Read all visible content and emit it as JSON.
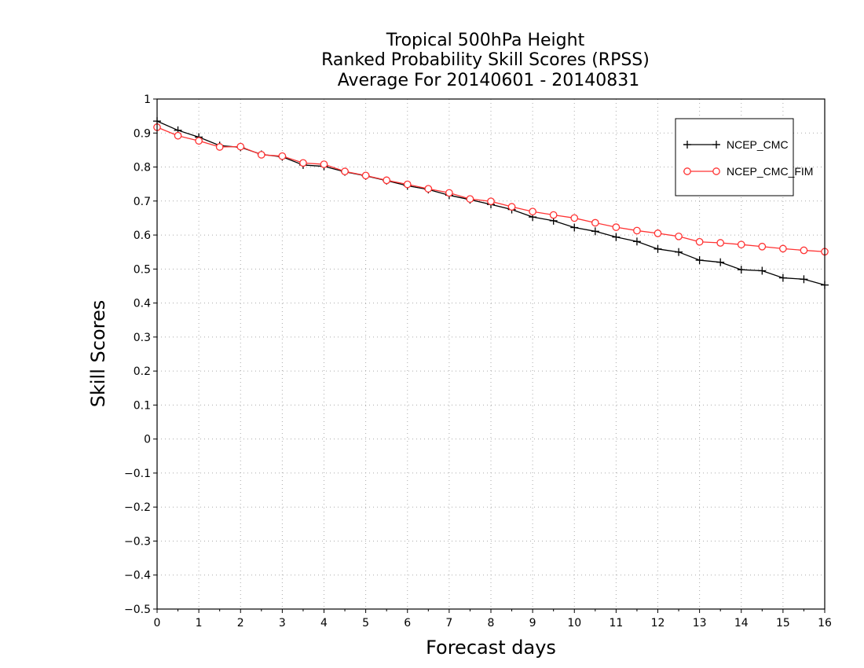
{
  "chart_data": {
    "type": "line",
    "title": [
      "Tropical 500hPa Height",
      "Ranked Probability Skill Scores (RPSS)",
      "Average For 20140601 - 20140831"
    ],
    "xlabel": "Forecast days",
    "ylabel": "Skill Scores",
    "xlim": [
      0,
      16
    ],
    "ylim": [
      -0.5,
      1
    ],
    "x_ticks": [
      0,
      1,
      2,
      3,
      4,
      5,
      6,
      7,
      8,
      9,
      10,
      11,
      12,
      13,
      14,
      15,
      16
    ],
    "y_ticks": [
      -0.5,
      -0.4,
      -0.3,
      -0.2,
      -0.1,
      0,
      0.1,
      0.2,
      0.3,
      0.4,
      0.5,
      0.6,
      0.7,
      0.8,
      0.9,
      1
    ],
    "y_tick_labels": [
      "−0.5",
      "−0.4",
      "−0.3",
      "−0.2",
      "−0.1",
      "0",
      "0.1",
      "0.2",
      "0.3",
      "0.4",
      "0.5",
      "0.6",
      "0.7",
      "0.8",
      "0.9",
      "1"
    ],
    "grid": true,
    "legend_position": "top-right",
    "x": [
      0,
      0.5,
      1,
      1.5,
      2,
      2.5,
      3,
      3.5,
      4,
      4.5,
      5,
      5.5,
      6,
      6.5,
      7,
      7.5,
      8,
      8.5,
      9,
      9.5,
      10,
      10.5,
      11,
      11.5,
      12,
      12.5,
      13,
      13.5,
      14,
      14.5,
      15,
      15.5,
      16
    ],
    "series": [
      {
        "name": "NCEP_CMC",
        "color": "#000000",
        "marker": "plus",
        "values": [
          0.935,
          0.908,
          0.888,
          0.863,
          0.858,
          0.837,
          0.83,
          0.806,
          0.802,
          0.786,
          0.774,
          0.76,
          0.745,
          0.734,
          0.717,
          0.704,
          0.69,
          0.675,
          0.653,
          0.642,
          0.622,
          0.611,
          0.594,
          0.581,
          0.559,
          0.55,
          0.526,
          0.52,
          0.498,
          0.495,
          0.474,
          0.47,
          0.453
        ]
      },
      {
        "name": "NCEP_CMC_FIM",
        "color": "#ff3333",
        "marker": "circle",
        "values": [
          0.917,
          0.892,
          0.877,
          0.859,
          0.86,
          0.836,
          0.832,
          0.812,
          0.808,
          0.787,
          0.775,
          0.761,
          0.749,
          0.736,
          0.724,
          0.706,
          0.699,
          0.683,
          0.669,
          0.659,
          0.65,
          0.636,
          0.623,
          0.613,
          0.605,
          0.596,
          0.58,
          0.577,
          0.572,
          0.566,
          0.56,
          0.555,
          0.551
        ]
      }
    ]
  }
}
